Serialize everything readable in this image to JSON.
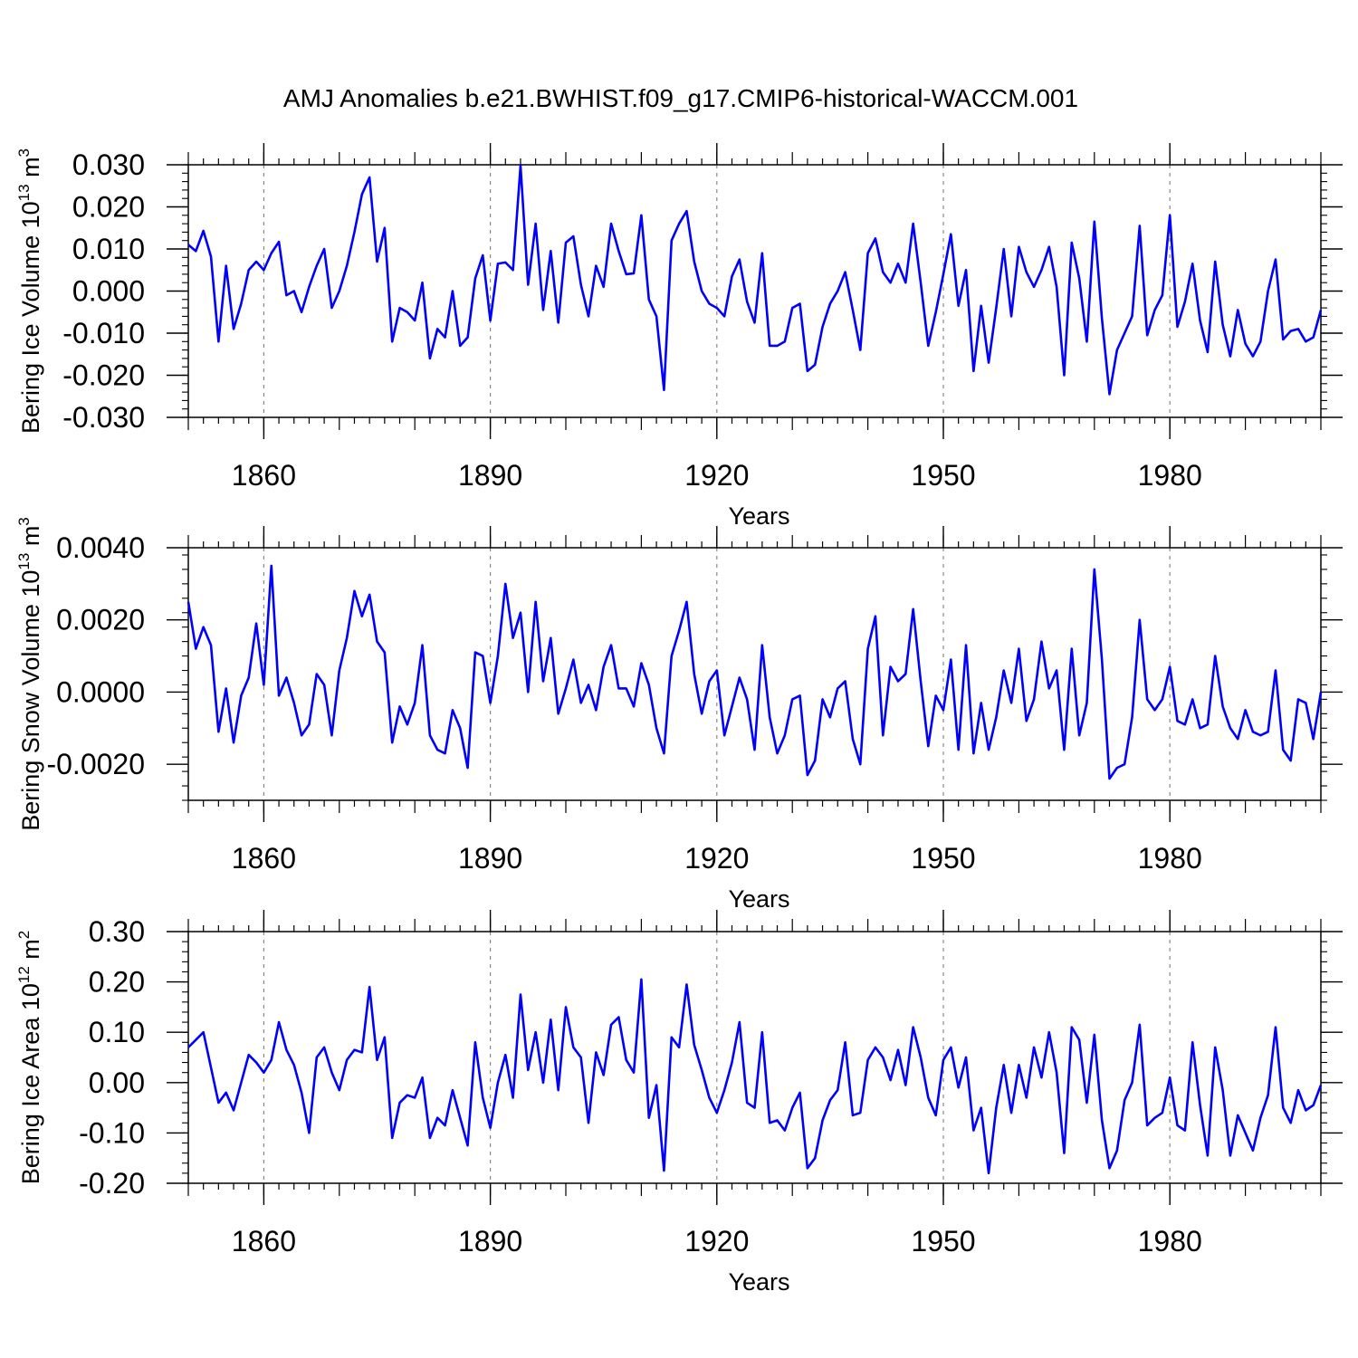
{
  "figure": {
    "title": "AMJ Anomalies b.e21.BWHIST.f09_g17.CMIP6-historical-WACCM.001"
  },
  "chart_data": [
    {
      "type": "line",
      "title": "AMJ Anomalies b.e21.BWHIST.f09_g17.CMIP6-historical-WACCM.001",
      "xlabel": "Years",
      "ylabel_main": "Bering Ice Volume 10",
      "ylabel_exp": "13",
      "ylabel_unit": " m",
      "ylabel_unit_exp": "3",
      "xlim": [
        1850,
        2000
      ],
      "ylim": [
        -0.03,
        0.03
      ],
      "x_ticks": [
        1860,
        1890,
        1920,
        1950,
        1980
      ],
      "x_tick_labels": [
        "1860",
        "1890",
        "1920",
        "1950",
        "1980"
      ],
      "y_ticks": [
        -0.03,
        -0.02,
        -0.01,
        0.0,
        0.01,
        0.02,
        0.03
      ],
      "y_tick_labels": [
        "-0.030",
        "-0.020",
        "-0.010",
        "0.000",
        "0.010",
        "0.020",
        "0.030"
      ],
      "x_start": 1850,
      "line_color": "#0000ff",
      "series": [
        {
          "name": "Bering Ice Volume",
          "values": [
            0.011,
            0.0095,
            0.0143,
            0.0082,
            -0.012,
            0.006,
            -0.009,
            -0.003,
            0.005,
            0.007,
            0.005,
            0.009,
            0.0117,
            -0.001,
            0.0,
            -0.005,
            0.001,
            0.006,
            0.01,
            -0.004,
            0.0,
            0.006,
            0.014,
            0.023,
            0.027,
            0.007,
            0.015,
            -0.012,
            -0.004,
            -0.005,
            -0.007,
            0.002,
            -0.016,
            -0.009,
            -0.011,
            0.0,
            -0.013,
            -0.011,
            0.003,
            0.0085,
            -0.007,
            0.0065,
            0.0068,
            0.005,
            0.0298,
            0.0015,
            0.016,
            -0.0045,
            0.0095,
            -0.0075,
            0.0115,
            0.013,
            0.0015,
            -0.006,
            0.006,
            0.001,
            0.016,
            0.0095,
            0.004,
            0.0042,
            0.018,
            -0.002,
            -0.006,
            -0.0235,
            0.012,
            0.016,
            0.019,
            0.007,
            0.0,
            -0.003,
            -0.004,
            -0.006,
            0.0035,
            0.0075,
            -0.0025,
            -0.0075,
            0.009,
            -0.013,
            -0.013,
            -0.012,
            -0.004,
            -0.003,
            -0.019,
            -0.0175,
            -0.0085,
            -0.003,
            0.0,
            0.0045,
            -0.0045,
            -0.014,
            0.009,
            0.0125,
            0.0045,
            0.002,
            0.0065,
            0.002,
            0.016,
            0.002,
            -0.013,
            -0.005,
            0.004,
            0.0135,
            -0.0035,
            0.005,
            -0.019,
            -0.0035,
            -0.017,
            -0.004,
            0.01,
            -0.006,
            0.0105,
            0.0045,
            0.001,
            0.005,
            0.0105,
            0.001,
            -0.02,
            0.0115,
            0.003,
            -0.012,
            0.0165,
            -0.0065,
            -0.0245,
            -0.014,
            -0.01,
            -0.006,
            0.0155,
            -0.0105,
            -0.0045,
            -0.001,
            0.018,
            -0.0085,
            -0.0025,
            0.0065,
            -0.007,
            -0.0145,
            0.007,
            -0.008,
            -0.0155,
            -0.0045,
            -0.0125,
            -0.0155,
            -0.012,
            0.0,
            0.0075,
            -0.0115,
            -0.0095,
            -0.009,
            -0.012,
            -0.011,
            -0.0045
          ]
        }
      ]
    },
    {
      "type": "line",
      "xlabel": "Years",
      "ylabel_main": "Bering Snow Volume 10",
      "ylabel_exp": "13",
      "ylabel_unit": " m",
      "ylabel_unit_exp": "3",
      "xlim": [
        1850,
        2000
      ],
      "ylim": [
        -0.003,
        0.004
      ],
      "x_ticks": [
        1860,
        1890,
        1920,
        1950,
        1980
      ],
      "x_tick_labels": [
        "1860",
        "1890",
        "1920",
        "1950",
        "1980"
      ],
      "y_ticks": [
        -0.002,
        0.0,
        0.002,
        0.004
      ],
      "y_tick_labels": [
        "-0.0020",
        "0.0000",
        "0.0020",
        "0.0040"
      ],
      "x_start": 1850,
      "line_color": "#0000ff",
      "series": [
        {
          "name": "Bering Snow Volume",
          "values": [
            0.0025,
            0.0012,
            0.0018,
            0.0013,
            -0.0011,
            0.0001,
            -0.0014,
            -0.0001,
            0.0004,
            0.0019,
            0.0002,
            0.0035,
            -0.0001,
            0.0004,
            -0.0003,
            -0.0012,
            -0.0009,
            0.0005,
            0.0002,
            -0.0012,
            0.0006,
            0.0015,
            0.0028,
            0.0021,
            0.0027,
            0.0014,
            0.0011,
            -0.0014,
            -0.0004,
            -0.0009,
            -0.0003,
            0.0013,
            -0.0012,
            -0.0016,
            -0.0017,
            -0.0005,
            -0.001,
            -0.0021,
            0.0011,
            0.001,
            -0.0003,
            0.001,
            0.003,
            0.0015,
            0.0022,
            0.0,
            0.0025,
            0.0003,
            0.0015,
            -0.0006,
            0.0001,
            0.0009,
            -0.0003,
            0.0002,
            -0.0005,
            0.0007,
            0.0013,
            0.0001,
            0.0001,
            -0.0004,
            0.0008,
            0.0002,
            -0.001,
            -0.0017,
            0.001,
            0.0017,
            0.0025,
            0.0005,
            -0.0006,
            0.0003,
            0.0006,
            -0.0012,
            -0.0004,
            0.0004,
            -0.0002,
            -0.0016,
            0.0013,
            -0.0007,
            -0.0017,
            -0.0012,
            -0.0002,
            -0.0001,
            -0.0023,
            -0.0019,
            -0.0002,
            -0.0007,
            0.0001,
            0.0003,
            -0.0013,
            -0.002,
            0.0012,
            0.0021,
            -0.0012,
            0.0007,
            0.0003,
            0.0005,
            0.0023,
            0.0003,
            -0.0015,
            -0.0001,
            -0.0005,
            0.0009,
            -0.0016,
            0.0013,
            -0.0017,
            -0.0003,
            -0.0016,
            -0.0007,
            0.0006,
            -0.0003,
            0.0012,
            -0.0008,
            -0.0002,
            0.0014,
            0.0001,
            0.0006,
            -0.0016,
            0.0012,
            -0.0012,
            -0.0003,
            0.0034,
            0.0009,
            -0.0024,
            -0.0021,
            -0.002,
            -0.0007,
            0.002,
            -0.0002,
            -0.0005,
            -0.0002,
            0.0007,
            -0.0008,
            -0.0009,
            -0.0002,
            -0.001,
            -0.0009,
            0.001,
            -0.0004,
            -0.001,
            -0.0013,
            -0.0005,
            -0.0011,
            -0.0012,
            -0.0011,
            0.0006,
            -0.0016,
            -0.0019,
            -0.0002,
            -0.0003,
            -0.0013,
            0.0
          ]
        }
      ]
    },
    {
      "type": "line",
      "xlabel": "Years",
      "ylabel_main": "Bering Ice Area 10",
      "ylabel_exp": "12",
      "ylabel_unit": " m",
      "ylabel_unit_exp": "2",
      "xlim": [
        1850,
        2000
      ],
      "ylim": [
        -0.2,
        0.3
      ],
      "x_ticks": [
        1860,
        1890,
        1920,
        1950,
        1980
      ],
      "x_tick_labels": [
        "1860",
        "1890",
        "1920",
        "1950",
        "1980"
      ],
      "y_ticks": [
        -0.2,
        -0.1,
        0.0,
        0.1,
        0.2,
        0.3
      ],
      "y_tick_labels": [
        "-0.20",
        "-0.10",
        "0.00",
        "0.10",
        "0.20",
        "0.30"
      ],
      "x_start": 1850,
      "line_color": "#0000ff",
      "series": [
        {
          "name": "Bering Ice Area",
          "values": [
            0.07,
            0.085,
            0.1,
            0.03,
            -0.04,
            -0.02,
            -0.055,
            0.0,
            0.055,
            0.04,
            0.02,
            0.045,
            0.12,
            0.065,
            0.035,
            -0.02,
            -0.1,
            0.05,
            0.07,
            0.02,
            -0.015,
            0.045,
            0.065,
            0.06,
            0.19,
            0.045,
            0.09,
            -0.11,
            -0.04,
            -0.025,
            -0.03,
            0.01,
            -0.11,
            -0.07,
            -0.085,
            -0.015,
            -0.07,
            -0.125,
            0.08,
            -0.03,
            -0.09,
            0.0,
            0.055,
            -0.03,
            0.175,
            0.025,
            0.1,
            0.0,
            0.125,
            -0.015,
            0.15,
            0.07,
            0.05,
            -0.08,
            0.06,
            0.015,
            0.115,
            0.13,
            0.045,
            0.02,
            0.205,
            -0.07,
            -0.005,
            -0.175,
            0.09,
            0.07,
            0.195,
            0.075,
            0.025,
            -0.03,
            -0.06,
            -0.015,
            0.04,
            0.12,
            -0.04,
            -0.05,
            0.1,
            -0.08,
            -0.075,
            -0.095,
            -0.05,
            -0.02,
            -0.17,
            -0.15,
            -0.075,
            -0.035,
            -0.015,
            0.08,
            -0.065,
            -0.06,
            0.045,
            0.07,
            0.05,
            0.005,
            0.065,
            -0.005,
            0.11,
            0.05,
            -0.03,
            -0.065,
            0.045,
            0.07,
            -0.01,
            0.05,
            -0.095,
            -0.05,
            -0.18,
            -0.05,
            0.035,
            -0.06,
            0.035,
            -0.03,
            0.07,
            0.01,
            0.1,
            0.02,
            -0.14,
            0.11,
            0.085,
            -0.04,
            0.095,
            -0.075,
            -0.17,
            -0.135,
            -0.035,
            0.0,
            0.115,
            -0.085,
            -0.07,
            -0.06,
            0.01,
            -0.085,
            -0.095,
            0.08,
            -0.045,
            -0.145,
            0.07,
            -0.015,
            -0.145,
            -0.065,
            -0.1,
            -0.135,
            -0.07,
            -0.025,
            0.11,
            -0.05,
            -0.08,
            -0.015,
            -0.055,
            -0.045,
            -0.005
          ]
        }
      ]
    }
  ]
}
